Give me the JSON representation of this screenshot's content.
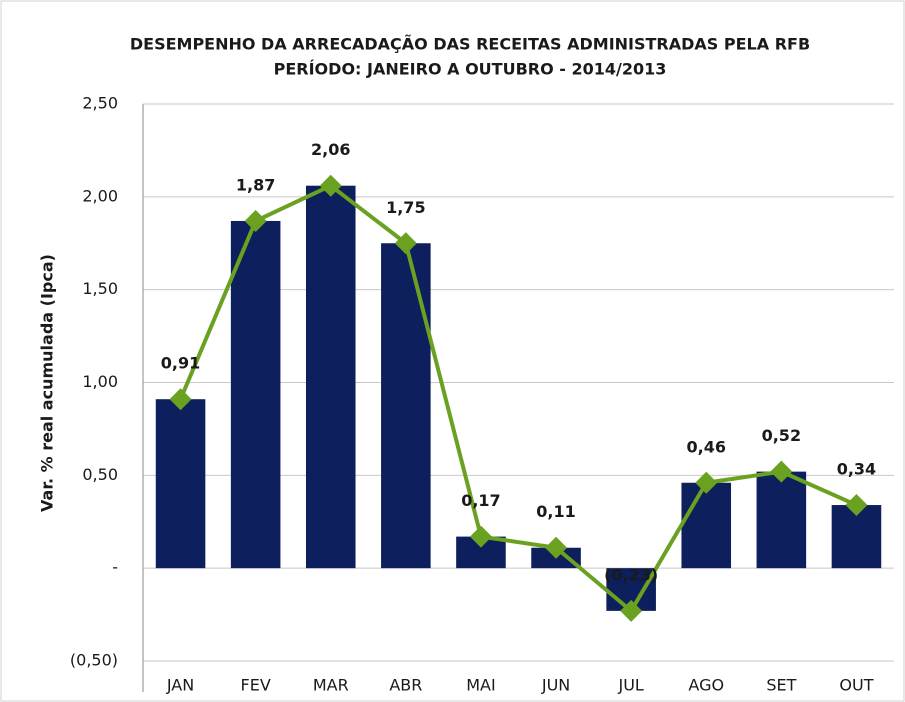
{
  "chart_data": {
    "type": "bar",
    "title": [
      "DESEMPENHO DA ARRECADAÇÃO DAS RECEITAS ADMINISTRADAS PELA RFB",
      "PERÍODO: JANEIRO A OUTUBRO - 2014/2013"
    ],
    "y_label": "Var. % real acumulada (Ipca)",
    "categories": [
      "JAN",
      "FEV",
      "MAR",
      "ABR",
      "MAI",
      "JUN",
      "JUL",
      "AGO",
      "SET",
      "OUT"
    ],
    "series": [
      {
        "type": "bar",
        "color": "#0d1f5c",
        "values": [
          0.91,
          1.87,
          2.06,
          1.75,
          0.17,
          0.11,
          -0.23,
          0.46,
          0.52,
          0.34
        ]
      },
      {
        "type": "line",
        "color": "#6aa121",
        "values": [
          0.91,
          1.87,
          2.06,
          1.75,
          0.17,
          0.11,
          -0.23,
          0.46,
          0.52,
          0.34
        ],
        "value_labels": [
          "0,91",
          "1,87",
          "2,06",
          "1,75",
          "0,17",
          "0,11",
          "(0,23)",
          "0,46",
          "0,52",
          "0,34"
        ]
      }
    ],
    "negative_color": "#e0201e",
    "ylim": [
      -0.5,
      2.5
    ],
    "yticks": [
      {
        "value": -0.5,
        "label": "(0,50)"
      },
      {
        "value": 0,
        "label": "-"
      },
      {
        "value": 0.5,
        "label": "0,50"
      },
      {
        "value": 1,
        "label": "1,00"
      },
      {
        "value": 1.5,
        "label": "1,50"
      },
      {
        "value": 2,
        "label": "2,00"
      },
      {
        "value": 2.5,
        "label": "2,50"
      }
    ],
    "grid": true
  }
}
